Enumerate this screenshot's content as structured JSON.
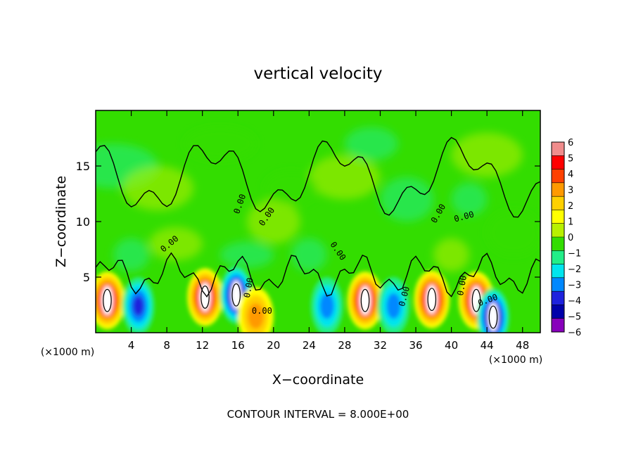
{
  "chart_data": {
    "type": "heatmap",
    "title": "vertical velocity",
    "xlabel": "X−coordinate",
    "ylabel": "Z−coordinate",
    "x_unit_left": "(×1000 m)",
    "x_unit_right": "(×1000 m)",
    "footer": "CONTOUR INTERVAL = 8.000E+00",
    "xlim": [
      0,
      50
    ],
    "ylim": [
      0,
      20
    ],
    "x_ticks": [
      4,
      8,
      12,
      16,
      20,
      24,
      28,
      32,
      36,
      40,
      44,
      48
    ],
    "y_ticks": [
      5,
      10,
      15
    ],
    "colorbar": {
      "levels": [
        -6,
        -5,
        -4,
        -3,
        -2,
        -1,
        0,
        1,
        2,
        3,
        4,
        5,
        6
      ],
      "labels": [
        "6",
        "5",
        "4",
        "3",
        "2",
        "1",
        "0",
        "−1",
        "−2",
        "−3",
        "−4",
        "−5",
        "−6"
      ],
      "colors": [
        "#f08c8c",
        "#ff0000",
        "#ff4000",
        "#ff9900",
        "#ffd000",
        "#ffff00",
        "#b8f000",
        "#33dd00",
        "#22ee88",
        "#00e5ee",
        "#0088ff",
        "#1e22dd",
        "#0000aa",
        "#8800bb"
      ]
    },
    "contour_labels": [
      "0.00"
    ],
    "features": [
      {
        "x": 1.3,
        "z": 2.9,
        "value": 10,
        "kind": "updraft"
      },
      {
        "x": 4.8,
        "z": 2.4,
        "value": -5.5,
        "kind": "downdraft"
      },
      {
        "x": 12.3,
        "z": 3.2,
        "value": 10,
        "kind": "updraft"
      },
      {
        "x": 15.8,
        "z": 3.4,
        "value": -8,
        "kind": "downdraft"
      },
      {
        "x": 18.0,
        "z": 1.5,
        "value": 4,
        "kind": "updraft"
      },
      {
        "x": 26.0,
        "z": 2.4,
        "value": -4.5,
        "kind": "downdraft"
      },
      {
        "x": 30.3,
        "z": 2.9,
        "value": 10,
        "kind": "updraft"
      },
      {
        "x": 33.5,
        "z": 2.4,
        "value": -4,
        "kind": "downdraft"
      },
      {
        "x": 37.8,
        "z": 3.0,
        "value": 10,
        "kind": "updraft"
      },
      {
        "x": 42.8,
        "z": 2.9,
        "value": 8,
        "kind": "updraft"
      },
      {
        "x": 44.7,
        "z": 1.4,
        "value": -8,
        "kind": "downdraft"
      }
    ]
  }
}
